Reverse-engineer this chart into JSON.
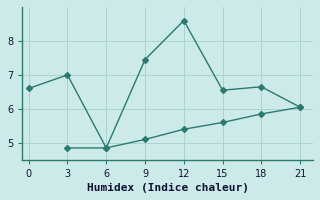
{
  "xlabel": "Humidex (Indice chaleur)",
  "bg_color": "#cceae8",
  "line_color": "#2a7a70",
  "grid_color": "#aad4d0",
  "line1_x": [
    0,
    3,
    6,
    9,
    12,
    15,
    18,
    21
  ],
  "line1_y": [
    6.6,
    7.0,
    4.85,
    7.45,
    8.6,
    6.55,
    6.65,
    6.05
  ],
  "line2_x": [
    3,
    6,
    9,
    12,
    15,
    18,
    21
  ],
  "line2_y": [
    4.85,
    4.85,
    5.1,
    5.4,
    5.6,
    5.85,
    6.05
  ],
  "xlim": [
    -0.5,
    22
  ],
  "ylim": [
    4.5,
    9.0
  ],
  "xticks": [
    0,
    3,
    6,
    9,
    12,
    15,
    18,
    21
  ],
  "yticks": [
    5,
    6,
    7,
    8
  ],
  "markersize": 3,
  "linewidth": 1.0,
  "xlabel_fontsize": 8,
  "tick_fontsize": 7
}
